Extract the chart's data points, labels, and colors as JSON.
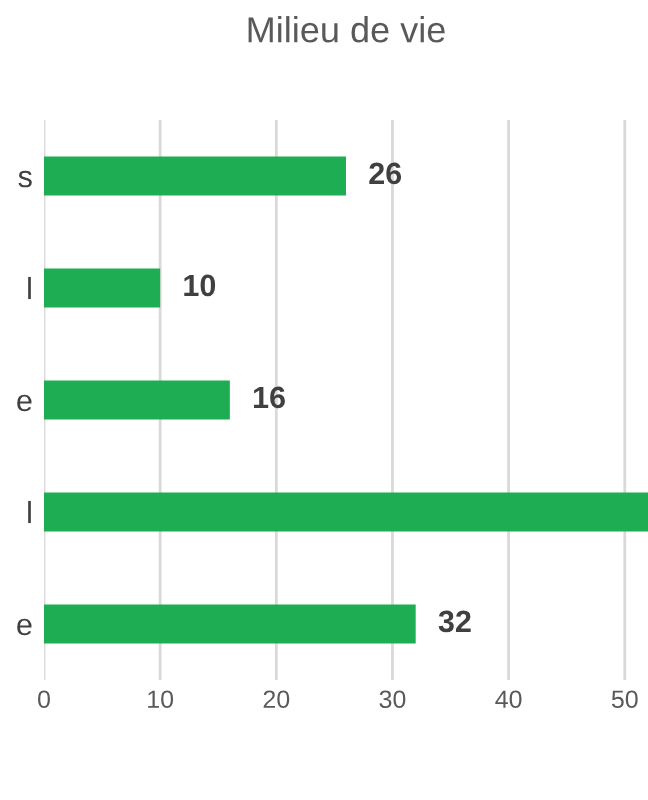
{
  "chart_data": {
    "type": "bar",
    "orientation": "horizontal",
    "title": "Milieu de vie",
    "categories": [
      "s",
      "l",
      "e",
      "l",
      "e"
    ],
    "values": [
      26,
      10,
      16,
      52,
      32
    ],
    "value_labels": [
      "26",
      "10",
      "16",
      null,
      "32"
    ],
    "color": "#1fad53",
    "xlim": [
      0,
      52
    ],
    "xticks": [
      0,
      10,
      20,
      30,
      40,
      50
    ],
    "grid": "x",
    "legend": false
  }
}
